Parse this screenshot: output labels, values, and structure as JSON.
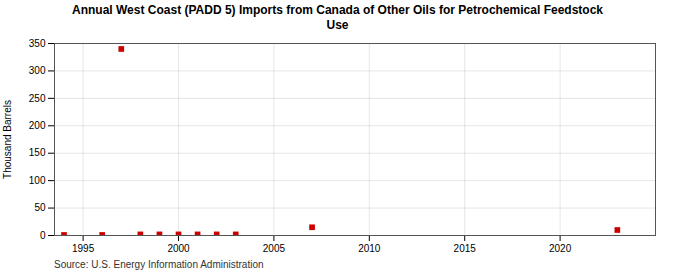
{
  "chart_data": {
    "type": "scatter",
    "title": "Annual West Coast (PADD 5) Imports from Canada of Other Oils for Petrochemical Feedstock\nUse",
    "ylabel": "Thousand Barrels",
    "source": "Source: U.S. Energy Information Administration",
    "x": [
      1994,
      1996,
      1997,
      1998,
      1999,
      2000,
      2001,
      2002,
      2003,
      2007,
      2023
    ],
    "values": [
      1,
      1,
      340,
      2,
      2,
      2,
      2,
      2,
      2,
      15,
      10
    ],
    "color": "#cc0000",
    "marker": "square",
    "xlim": [
      1993.5,
      2025
    ],
    "xticks": [
      1995,
      2000,
      2005,
      2010,
      2015,
      2020
    ],
    "ylim": [
      0,
      350
    ],
    "yticks": [
      0,
      50,
      100,
      150,
      200,
      250,
      300,
      350
    ],
    "grid": true
  }
}
